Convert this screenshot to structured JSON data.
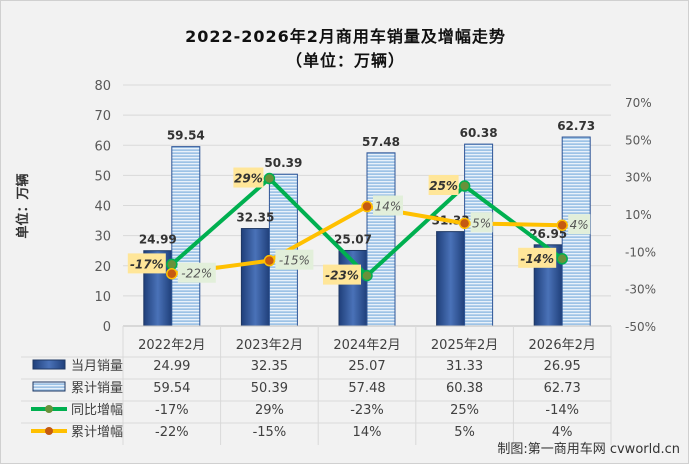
{
  "chart_data": {
    "type": "bar",
    "title": "2022-2026年2月商用车销量及增幅走势",
    "subtitle": "（单位：万辆）",
    "ylabel": "单位：万辆",
    "categories": [
      "2022年2月",
      "2023年2月",
      "2024年2月",
      "2025年2月",
      "2026年2月"
    ],
    "ylim": [
      0,
      80
    ],
    "y_ticks": [
      "0",
      "10",
      "20",
      "30",
      "40",
      "50",
      "60",
      "70",
      "80"
    ],
    "y2lim": [
      -50,
      70
    ],
    "y2_ticks": [
      "-50%",
      "-30%",
      "-10%",
      "10%",
      "30%",
      "50%",
      "70%"
    ],
    "grid": true,
    "legend": "bottom-table",
    "series": [
      {
        "name": "当月销量",
        "type": "bar",
        "axis": "left",
        "values": [
          24.99,
          32.35,
          25.07,
          31.33,
          26.95
        ],
        "labels": [
          "24.99",
          "32.35",
          "25.07",
          "31.33",
          "26.95"
        ],
        "color": "#2f5597"
      },
      {
        "name": "累计销量",
        "type": "bar",
        "axis": "left",
        "values": [
          59.54,
          50.39,
          57.48,
          60.38,
          62.73
        ],
        "labels": [
          "59.54",
          "50.39",
          "57.48",
          "60.38",
          "62.73"
        ],
        "color": "#9dc3e6"
      },
      {
        "name": "同比增幅",
        "type": "line",
        "axis": "right",
        "values": [
          -17,
          29,
          -23,
          25,
          -14
        ],
        "labels": [
          "-17%",
          "29%",
          "-23%",
          "25%",
          "-14%"
        ],
        "color": "#00b050"
      },
      {
        "name": "累计增幅",
        "type": "line",
        "axis": "right",
        "values": [
          -22,
          -15,
          14,
          5,
          4
        ],
        "labels": [
          "-22%",
          "-15%",
          "14%",
          "5%",
          "4%"
        ],
        "color": "#ffc000"
      }
    ]
  },
  "credit": "制图:第一商用车网 cvworld.cn"
}
